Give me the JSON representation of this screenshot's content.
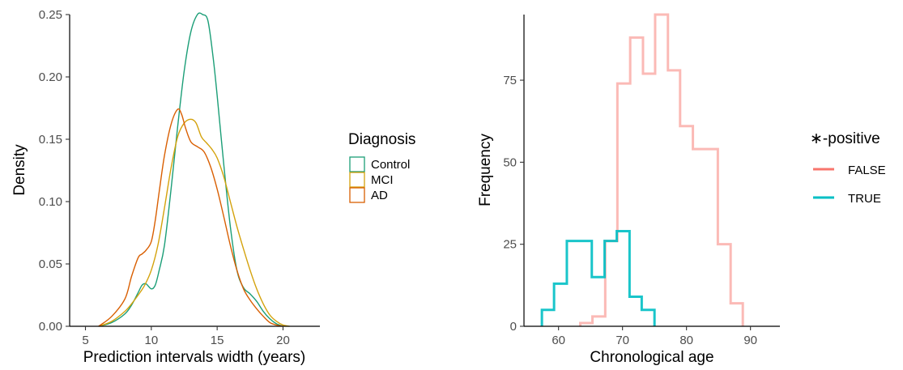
{
  "chart_data": [
    {
      "type": "line",
      "subtype": "density",
      "title": "",
      "xlabel": "Prediction intervals width (years)",
      "ylabel": "Density",
      "xlim": [
        3.8,
        22.8
      ],
      "ylim": [
        0,
        0.25
      ],
      "x_ticks": [
        5,
        10,
        15,
        20
      ],
      "y_ticks": [
        "0.00",
        "0.05",
        "0.10",
        "0.15",
        "0.20",
        "0.25"
      ],
      "grid": false,
      "legend": {
        "title": "Diagnosis",
        "position": "right"
      },
      "series": [
        {
          "name": "Control",
          "color": "#1b9e77",
          "x": [
            6,
            7,
            8,
            8.5,
            9,
            9.3,
            9.6,
            10,
            10.3,
            10.6,
            11,
            11.5,
            12,
            12.5,
            13,
            13.5,
            13.9,
            14.3,
            14.7,
            15,
            15.5,
            16,
            16.5,
            17,
            17.5,
            18,
            18.5,
            19,
            19.5,
            20
          ],
          "y": [
            0,
            0.003,
            0.01,
            0.017,
            0.027,
            0.033,
            0.034,
            0.03,
            0.033,
            0.045,
            0.065,
            0.11,
            0.16,
            0.205,
            0.236,
            0.25,
            0.25,
            0.245,
            0.215,
            0.185,
            0.13,
            0.08,
            0.045,
            0.031,
            0.026,
            0.02,
            0.012,
            0.006,
            0.002,
            0
          ]
        },
        {
          "name": "MCI",
          "color": "#d4a20c",
          "x": [
            6,
            7,
            8,
            8.5,
            9,
            9.5,
            10,
            10.5,
            11,
            11.5,
            12,
            12.5,
            13,
            13.4,
            13.8,
            14.2,
            14.6,
            15,
            15.5,
            16,
            16.5,
            17,
            17.5,
            18,
            18.5,
            19,
            19.5,
            20,
            20.5
          ],
          "y": [
            0,
            0.004,
            0.012,
            0.018,
            0.025,
            0.033,
            0.045,
            0.065,
            0.095,
            0.127,
            0.152,
            0.163,
            0.166,
            0.163,
            0.152,
            0.147,
            0.142,
            0.135,
            0.12,
            0.1,
            0.08,
            0.062,
            0.045,
            0.03,
            0.018,
            0.009,
            0.004,
            0.001,
            0
          ]
        },
        {
          "name": "AD",
          "color": "#d95f02",
          "x": [
            6,
            7,
            8,
            8.5,
            9,
            9.3,
            9.6,
            10,
            10.3,
            10.6,
            11,
            11.5,
            12,
            12.3,
            12.6,
            13,
            13.5,
            14,
            14.5,
            15,
            15.5,
            16,
            16.5,
            17,
            17.5,
            18,
            18.5,
            19,
            19.5,
            20
          ],
          "y": [
            0,
            0.008,
            0.022,
            0.04,
            0.055,
            0.058,
            0.061,
            0.068,
            0.085,
            0.108,
            0.137,
            0.162,
            0.174,
            0.17,
            0.159,
            0.148,
            0.144,
            0.14,
            0.128,
            0.11,
            0.088,
            0.065,
            0.045,
            0.03,
            0.021,
            0.014,
            0.008,
            0.003,
            0.001,
            0
          ]
        }
      ]
    },
    {
      "type": "histogram",
      "title": "",
      "xlabel": "Chronological age",
      "ylabel": "Frequency",
      "xlim": [
        54.6,
        94.6
      ],
      "ylim": [
        0,
        95
      ],
      "x_ticks": [
        60,
        70,
        80,
        90
      ],
      "y_ticks": [
        0,
        25,
        50,
        75
      ],
      "grid": false,
      "legend": {
        "title": "∗-positive",
        "position": "right"
      },
      "series": [
        {
          "name": "FALSE",
          "color": "#f8766d",
          "opacity": 0.5,
          "bin_edges": [
            63.4,
            65.3,
            67.3,
            69.2,
            71.2,
            73.2,
            75.1,
            77.1,
            79.0,
            81.0,
            83.0,
            84.9,
            86.9,
            88.8
          ],
          "counts": [
            1,
            3,
            26,
            74,
            88,
            77,
            95,
            78,
            61,
            54,
            54,
            25,
            7
          ]
        },
        {
          "name": "TRUE",
          "color": "#00bfc4",
          "opacity": 0.9,
          "bin_edges": [
            57.4,
            59.3,
            61.3,
            63.3,
            65.2,
            67.2,
            69.1,
            71.1,
            73.0,
            75.0
          ],
          "counts": [
            5,
            13,
            26,
            26,
            15,
            26,
            29,
            9,
            5
          ]
        }
      ]
    }
  ]
}
